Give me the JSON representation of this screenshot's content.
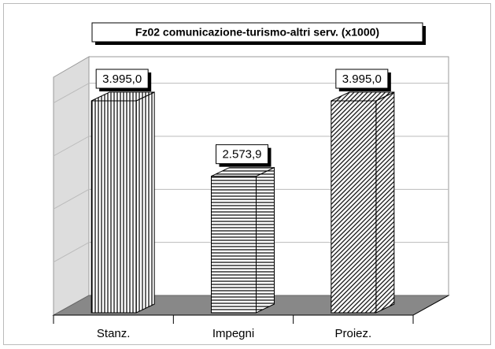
{
  "chart_data": {
    "type": "bar3d",
    "title": "Fz02 comunicazione-turismo-altri serv. (x1000)",
    "categories": [
      "Stanz.",
      "Impegni",
      "Proiez."
    ],
    "values": [
      3995.0,
      2573.9,
      3995.0
    ],
    "value_labels": [
      "3.995,0",
      "2.573,9",
      "3.995,0"
    ],
    "ylim": [
      0,
      4500
    ],
    "yticks": [
      0,
      1000,
      2000,
      3000,
      4000
    ],
    "grid": true
  }
}
